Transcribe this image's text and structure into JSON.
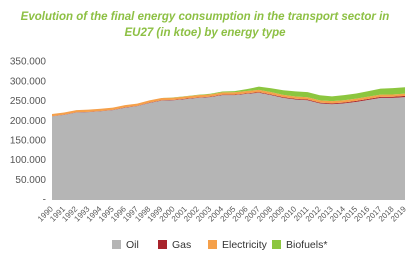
{
  "chart_data": {
    "type": "stacked-area",
    "title": [
      "Evolution of the final energy consumption in the transport sector in",
      "EU27 (in ktoe) by energy type"
    ],
    "categories": [
      "1990",
      "1991",
      "1992",
      "1993",
      "1994",
      "1995",
      "1996",
      "1997",
      "1998",
      "1999",
      "2000",
      "2001",
      "2002",
      "2003",
      "2004",
      "2005",
      "2006",
      "2007",
      "2008",
      "2009",
      "2010",
      "2011",
      "2012",
      "2013",
      "2014",
      "2015",
      "2016",
      "2017",
      "2018",
      "2019"
    ],
    "series": [
      {
        "name": "Oil",
        "color": "#b5b5b5",
        "values": [
          212000,
          216000,
          222000,
          223000,
          225000,
          228000,
          234000,
          238000,
          246000,
          252000,
          253000,
          256000,
          259000,
          261000,
          266000,
          266000,
          269000,
          272000,
          266000,
          259000,
          255000,
          253000,
          245000,
          243000,
          245000,
          249000,
          254000,
          259000,
          259000,
          261000
        ]
      },
      {
        "name": "Gas",
        "color": "#a8232b",
        "values": [
          500,
          500,
          600,
          600,
          700,
          700,
          800,
          800,
          900,
          900,
          1000,
          1000,
          1100,
          1200,
          1300,
          1400,
          1500,
          1600,
          1700,
          1800,
          1900,
          2000,
          2100,
          2200,
          2300,
          2400,
          2500,
          2700,
          2800,
          3000
        ]
      },
      {
        "name": "Electricity",
        "color": "#f5a04a",
        "values": [
          5500,
          5500,
          5500,
          5600,
          5600,
          5600,
          5700,
          5700,
          5700,
          5800,
          5800,
          5800,
          5800,
          5800,
          5800,
          5800,
          5800,
          5800,
          5800,
          5700,
          5700,
          5700,
          5600,
          5600,
          5600,
          5600,
          5700,
          5700,
          5800,
          5900
        ]
      },
      {
        "name": "Biofuels*",
        "color": "#8cc63f",
        "values": [
          0,
          0,
          0,
          0,
          0,
          0,
          0,
          0,
          0,
          0,
          500,
          700,
          900,
          1500,
          2000,
          3000,
          5000,
          8000,
          10000,
          12000,
          13000,
          13000,
          13000,
          12000,
          13000,
          13000,
          14000,
          15000,
          16000,
          16000
        ]
      }
    ],
    "ylim": [
      0,
      350000
    ],
    "yticks": [
      {
        "value": 0,
        "label": "-"
      },
      {
        "value": 50000,
        "label": "50.000"
      },
      {
        "value": 100000,
        "label": "100.000"
      },
      {
        "value": 150000,
        "label": "150.000"
      },
      {
        "value": 200000,
        "label": "200.000"
      },
      {
        "value": 250000,
        "label": "250.000"
      },
      {
        "value": 300000,
        "label": "300.000"
      },
      {
        "value": 350000,
        "label": "350.000"
      }
    ],
    "grid": false
  }
}
